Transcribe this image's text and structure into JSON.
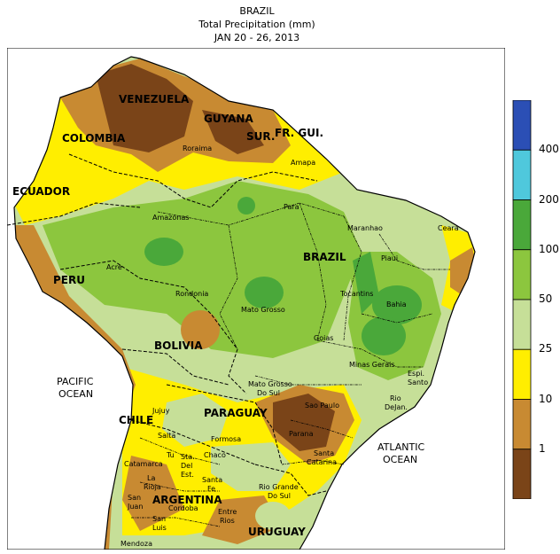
{
  "title": {
    "line1": "BRAZIL",
    "line2": "Total Precipitation (mm)",
    "line3": "JAN 20 - 26, 2013"
  },
  "legend": {
    "ticks": [
      "400",
      "200",
      "100",
      "50",
      "25",
      "10",
      "1"
    ],
    "colors": [
      "#2b4fb5",
      "#4fc8dc",
      "#4aa83a",
      "#8cc63e",
      "#c6df98",
      "#ffee00",
      "#c88a32",
      "#7a4418"
    ]
  },
  "labels": {
    "countries": {
      "venezuela": "VENEZUELA",
      "guyana": "GUYANA",
      "suriname": "SUR.",
      "fr_guiana": "FR. GUI.",
      "colombia": "COLOMBIA",
      "ecuador": "ECUADOR",
      "peru": "PERU",
      "brazil": "BRAZIL",
      "bolivia": "BOLIVIA",
      "paraguay": "PARAGUAY",
      "chile": "CHILE",
      "argentina": "ARGENTINA",
      "uruguay": "URUGUAY"
    },
    "oceans": {
      "pacific_1": "PACIFIC",
      "pacific_2": "OCEAN",
      "atlantic_1": "ATLANTIC",
      "atlantic_2": "OCEAN"
    },
    "states": {
      "roraima": "Roraima",
      "amapa": "Amapa",
      "amazonas": "Amazonas",
      "para": "Para",
      "maranhao": "Maranhao",
      "ceara": "Ceara",
      "piaui": "Piaui",
      "acre": "Acre",
      "rondonia": "Rondonia",
      "tocantins": "Tocantins",
      "bahia": "Bahia",
      "mato_grosso": "Mato Grosso",
      "goias": "Goias",
      "minas_gerais": "Minas Gerais",
      "espirito_santo_1": "Espi.",
      "espirito_santo_2": "Santo",
      "rio_1": "Rio",
      "rio_2": "DeJan.",
      "ms_1": "Mato Grosso",
      "ms_2": "Do Sul",
      "sao_paulo": "Sao Paulo",
      "parana": "Parana",
      "santa_catarina_1": "Santa",
      "santa_catarina_2": "Catarina",
      "rgs_1": "Rio Grande",
      "rgs_2": "Do Sul",
      "jujuy": "Jujuy",
      "salta": "Salta",
      "formosa": "Formosa",
      "tucuman": "Tu",
      "chaco": "Chaco",
      "catamarca": "Catamarca",
      "sgo_1": "Sta.",
      "sgo_2": "Del",
      "sgo_3": "Est.",
      "santa_fe_1": "Santa",
      "santa_fe_2": "Fe",
      "la_rioja_1": "La",
      "la_rioja_2": "Rioja",
      "cordoba": "Cordoba",
      "san_juan_1": "San",
      "san_juan_2": "Juan",
      "san_luis_1": "San",
      "san_luis_2": "Luis",
      "entre_rios_1": "Entre",
      "entre_rios_2": "Rios",
      "mendoza": "Mendoza"
    }
  }
}
